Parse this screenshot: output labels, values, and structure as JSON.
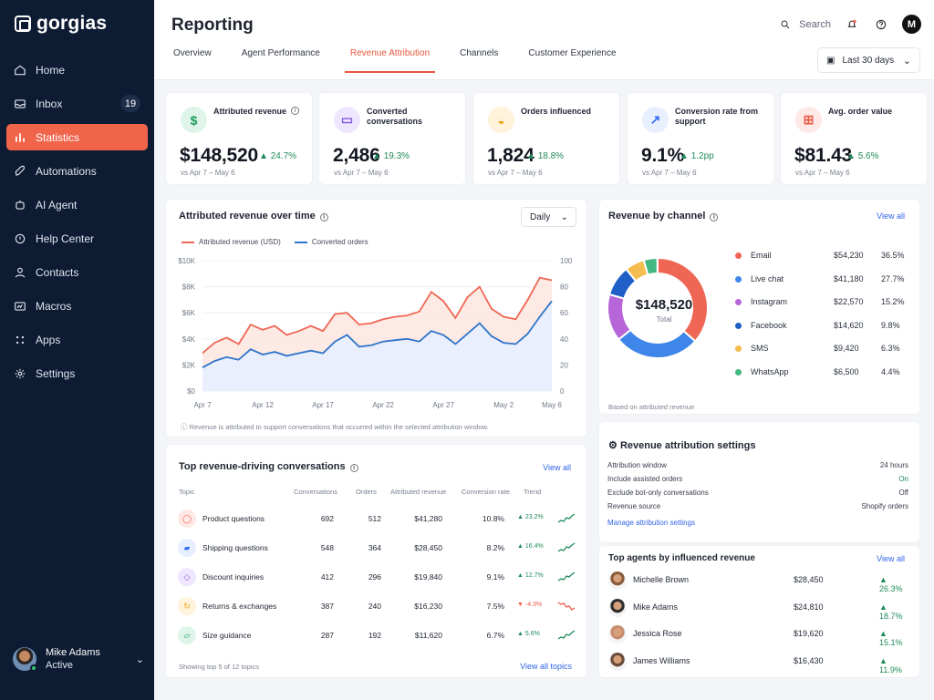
{
  "app": {
    "logo_text": "gorgias",
    "page_title": "Reporting",
    "search_label": "Search",
    "profile_initial": "M",
    "date_filter": "Last 30 days"
  },
  "sidebar": {
    "items": [
      {
        "label": "Home",
        "icon": "home-icon"
      },
      {
        "label": "Inbox",
        "icon": "inbox-icon",
        "badge": "19"
      },
      {
        "label": "Statistics",
        "icon": "bar-chart-icon",
        "active": true
      },
      {
        "label": "Automations",
        "icon": "rocket-icon"
      },
      {
        "label": "AI Agent",
        "icon": "ai-agent-icon"
      },
      {
        "label": "Help Center",
        "icon": "help-icon"
      },
      {
        "label": "Contacts",
        "icon": "contacts-icon"
      },
      {
        "label": "Macros",
        "icon": "macros-icon"
      },
      {
        "label": "Apps",
        "icon": "apps-icon"
      },
      {
        "label": "Settings",
        "icon": "gear-icon"
      }
    ],
    "user": {
      "name": "Mike Adams",
      "status": "Active"
    }
  },
  "tabs": [
    "Overview",
    "Agent Performance",
    "Revenue Attribution",
    "Channels",
    "Customer Experience"
  ],
  "active_tab": "Revenue Attribution",
  "kpis": [
    {
      "label": "Attributed revenue",
      "value": "$148,520",
      "change": "24.7%",
      "sub": "vs Apr 7 – May 6",
      "icon": "dollar-icon",
      "color": "#dff5ea",
      "iconColor": "#1d9a5c"
    },
    {
      "label": "Converted conversations",
      "value": "2,486",
      "change": "19.3%",
      "sub": "vs Apr 7 – May 6",
      "icon": "chat-icon",
      "color": "#efe7ff",
      "iconColor": "#8458d7"
    },
    {
      "label": "Orders influenced",
      "value": "1,824",
      "change": "18.8%",
      "sub": "vs Apr 7 – May 6",
      "icon": "bag-icon",
      "color": "#fff3dc",
      "iconColor": "#f0a51b"
    },
    {
      "label": "Conversion rate from support",
      "value": "9.1%",
      "change": "1.2pp",
      "sub": "vs Apr 7 – May 6",
      "icon": "trend-icon",
      "color": "#e8f0ff",
      "iconColor": "#356cf0"
    },
    {
      "label": "Avg. order value",
      "value": "$81.43",
      "change": "5.6%",
      "sub": "vs Apr 7 – May 6",
      "icon": "cart-icon",
      "color": "#ffe9e6",
      "iconColor": "#ef5a46"
    }
  ],
  "attributed_chart": {
    "title": "Attributed revenue over time",
    "granularity": "Daily",
    "legend_revenue": "Attributed revenue (USD)",
    "legend_orders": "Converted orders",
    "note": "Revenue is attributed to support conversations that occurred within the selected attribution window.",
    "colors": {
      "revenue": "#ef6654",
      "orders": "#2f74c9"
    }
  },
  "chart_data": {
    "type": "area",
    "x": [
      "Apr 7",
      "Apr 8",
      "Apr 9",
      "Apr 10",
      "Apr 11",
      "Apr 12",
      "Apr 13",
      "Apr 14",
      "Apr 15",
      "Apr 16",
      "Apr 17",
      "Apr 18",
      "Apr 19",
      "Apr 20",
      "Apr 21",
      "Apr 22",
      "Apr 23",
      "Apr 24",
      "Apr 25",
      "Apr 26",
      "Apr 27",
      "Apr 28",
      "Apr 29",
      "Apr 30",
      "May 1",
      "May 2",
      "May 3",
      "May 4",
      "May 5",
      "May 6"
    ],
    "x_ticks": [
      "Apr 7",
      "Apr 12",
      "Apr 17",
      "Apr 22",
      "Apr 27",
      "May 2",
      "May 6"
    ],
    "series": [
      {
        "name": "Attributed revenue (USD)",
        "axis": "left",
        "values": [
          2900,
          3700,
          4100,
          3600,
          5100,
          4700,
          5000,
          4300,
          4600,
          5000,
          4600,
          5900,
          6000,
          5100,
          5200,
          5500,
          5700,
          5800,
          6100,
          7600,
          6900,
          5600,
          7200,
          8000,
          6300,
          5700,
          5500,
          7000,
          8700,
          8500
        ]
      },
      {
        "name": "Converted orders",
        "axis": "right",
        "values": [
          18,
          23,
          26,
          24,
          32,
          28,
          30,
          27,
          29,
          31,
          29,
          38,
          43,
          34,
          35,
          38,
          39,
          40,
          38,
          46,
          43,
          36,
          44,
          52,
          42,
          37,
          36,
          44,
          57,
          69
        ]
      }
    ],
    "ylim": [
      0,
      10000
    ],
    "y2lim": [
      0,
      100
    ],
    "y_ticks": [
      "$0",
      "$2K",
      "$4K",
      "$6K",
      "$8K",
      "$10K"
    ],
    "y2_ticks": [
      "0",
      "20",
      "40",
      "60",
      "80",
      "100"
    ],
    "legend_position": "top-left"
  },
  "top_conversations": {
    "title": "Top revenue-driving conversations",
    "view_all": "View all",
    "headers": [
      "Topic",
      "Conversations",
      "Orders",
      "Attributed revenue",
      "Conversion rate",
      "Trend"
    ],
    "rows": [
      {
        "topic": "Product questions",
        "conversations": "692",
        "orders": "512",
        "revenue": "$41,280",
        "rate": "10.8%",
        "trend": "23.2%",
        "direction": "up",
        "icon": "chat-bubble-icon",
        "bg": "#ffe9e6",
        "fg": "#ef5a46"
      },
      {
        "topic": "Shipping questions",
        "conversations": "548",
        "orders": "364",
        "revenue": "$28,450",
        "rate": "8.2%",
        "trend": "16.4%",
        "direction": "up",
        "icon": "truck-icon",
        "bg": "#e8f0ff",
        "fg": "#356cf0"
      },
      {
        "topic": "Discount inquiries",
        "conversations": "412",
        "orders": "296",
        "revenue": "$19,840",
        "rate": "9.1%",
        "trend": "12.7%",
        "direction": "up",
        "icon": "tag-icon",
        "bg": "#efe7ff",
        "fg": "#8458d7"
      },
      {
        "topic": "Returns & exchanges",
        "conversations": "387",
        "orders": "240",
        "revenue": "$16,230",
        "rate": "7.5%",
        "trend": "-4.3%",
        "direction": "down",
        "icon": "refresh-icon",
        "bg": "#fff3dc",
        "fg": "#f0a51b"
      },
      {
        "topic": "Size guidance",
        "conversations": "287",
        "orders": "192",
        "revenue": "$11,620",
        "rate": "6.7%",
        "trend": "5.6%",
        "direction": "up",
        "icon": "ruler-icon",
        "bg": "#dff5ea",
        "fg": "#1d9a5c"
      }
    ],
    "footer": "Showing top 5 of 12 topics",
    "footer_link": "View all topics"
  },
  "revenue_by_channel": {
    "title": "Revenue by channel",
    "view_all": "View all",
    "total": "$148,520",
    "total_label": "Total",
    "footnote": "Based on attributed revenue",
    "channels": [
      {
        "name": "Email",
        "value": "$54,230",
        "percent": "36.5%",
        "share": 36.5,
        "color": "#ef6654"
      },
      {
        "name": "Live chat",
        "value": "$41,180",
        "percent": "27.7%",
        "share": 27.7,
        "color": "#3f86ea"
      },
      {
        "name": "Instagram",
        "value": "$22,570",
        "percent": "15.2%",
        "share": 15.2,
        "color": "#b666d8"
      },
      {
        "name": "Facebook",
        "value": "$14,620",
        "percent": "9.8%",
        "share": 9.8,
        "color": "#1f5fc7"
      },
      {
        "name": "SMS",
        "value": "$9,420",
        "percent": "6.3%",
        "share": 6.3,
        "color": "#f5bd4f"
      },
      {
        "name": "WhatsApp",
        "value": "$6,500",
        "percent": "4.4%",
        "share": 4.4,
        "color": "#43b881"
      }
    ]
  },
  "attribution_settings": {
    "title": "Revenue attribution settings",
    "rows": [
      {
        "label": "Attribution window",
        "value": "24 hours"
      },
      {
        "label": "Include assisted orders",
        "value": "On"
      },
      {
        "label": "Exclude bot-only conversations",
        "value": "Off"
      },
      {
        "label": "Revenue source",
        "value": "Shopify orders"
      }
    ],
    "link": "Manage attribution settings"
  },
  "top_agents": {
    "title": "Top agents by influenced revenue",
    "view_all": "View all",
    "rows": [
      {
        "name": "Michelle Brown",
        "value": "$28,450",
        "change": "26.3%"
      },
      {
        "name": "Mike Adams",
        "value": "$24,810",
        "change": "18.7%"
      },
      {
        "name": "Jessica Rose",
        "value": "$19,620",
        "change": "15.1%"
      },
      {
        "name": "James Williams",
        "value": "$16,430",
        "change": "11.9%"
      }
    ]
  }
}
